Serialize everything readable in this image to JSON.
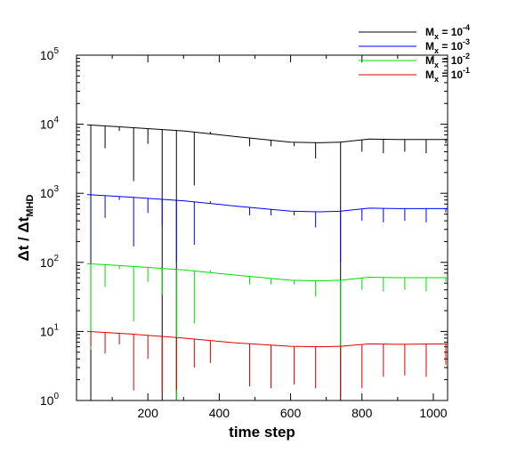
{
  "chart_data": {
    "type": "line",
    "xlabel": "time step",
    "ylabel": {
      "main": "Δt / Δt",
      "sub": "MHD"
    },
    "xlim": [
      0,
      1040
    ],
    "ylim": [
      1,
      100000
    ],
    "yscale": "log",
    "x_ticks": [
      200,
      400,
      600,
      800,
      1000
    ],
    "y_ticks": [
      {
        "value": 1,
        "base": "10",
        "exp": "0"
      },
      {
        "value": 10,
        "base": "10",
        "exp": "1"
      },
      {
        "value": 100,
        "base": "10",
        "exp": "2"
      },
      {
        "value": 1000,
        "base": "10",
        "exp": "3"
      },
      {
        "value": 10000,
        "base": "10",
        "exp": "4"
      },
      {
        "value": 100000,
        "base": "10",
        "exp": "5"
      }
    ],
    "legend_position": "top-right",
    "spike_steps": [
      40,
      80,
      120,
      160,
      200,
      240,
      280,
      330,
      375,
      485,
      545,
      610,
      670,
      740,
      800,
      860,
      920,
      980,
      1035
    ],
    "series": [
      {
        "name": {
          "base": "M",
          "sub": "x",
          "rest": " = 10",
          "exp": "-4"
        },
        "color": "#000000",
        "baseline": [
          [
            30,
            9800
          ],
          [
            150,
            9000
          ],
          [
            300,
            8000
          ],
          [
            450,
            6600
          ],
          [
            600,
            5500
          ],
          [
            680,
            5400
          ],
          [
            740,
            5500
          ],
          [
            820,
            6100
          ],
          [
            900,
            6000
          ],
          [
            1040,
            6000
          ]
        ],
        "spike_mins": [
          1,
          4500,
          8000,
          1500,
          5200,
          1,
          1,
          1300,
          7800,
          4800,
          4800,
          4800,
          3200,
          1,
          4000,
          3800,
          4000,
          3800,
          5300
        ]
      },
      {
        "name": {
          "base": "M",
          "sub": "x",
          "rest": " = 10",
          "exp": "-3"
        },
        "color": "#0000ff",
        "baseline": [
          [
            30,
            960
          ],
          [
            150,
            880
          ],
          [
            300,
            780
          ],
          [
            450,
            650
          ],
          [
            600,
            550
          ],
          [
            680,
            540
          ],
          [
            740,
            550
          ],
          [
            820,
            610
          ],
          [
            900,
            600
          ],
          [
            1040,
            600
          ]
        ],
        "spike_mins": [
          100,
          440,
          800,
          170,
          520,
          340,
          100,
          180,
          770,
          480,
          480,
          480,
          320,
          100,
          400,
          380,
          400,
          380,
          530
        ]
      },
      {
        "name": {
          "base": "M",
          "sub": "x",
          "rest": " = 10",
          "exp": "-2"
        },
        "color": "#00dd00",
        "baseline": [
          [
            30,
            96
          ],
          [
            150,
            88
          ],
          [
            300,
            78
          ],
          [
            450,
            65
          ],
          [
            600,
            55
          ],
          [
            680,
            54
          ],
          [
            740,
            55
          ],
          [
            820,
            61
          ],
          [
            900,
            60
          ],
          [
            1040,
            60
          ]
        ],
        "spike_mins": [
          5.5,
          44,
          80,
          14,
          52,
          34,
          1,
          13,
          77,
          48,
          48,
          48,
          32,
          4.5,
          40,
          38,
          40,
          38,
          53
        ]
      },
      {
        "name": {
          "base": "M",
          "sub": "x",
          "rest": " = 10",
          "exp": "-1"
        },
        "color": "#dd0000",
        "baseline": [
          [
            30,
            10
          ],
          [
            150,
            9.2
          ],
          [
            300,
            8.0
          ],
          [
            450,
            6.8
          ],
          [
            600,
            6.1
          ],
          [
            680,
            6.0
          ],
          [
            740,
            6.1
          ],
          [
            820,
            6.6
          ],
          [
            900,
            6.5
          ],
          [
            1040,
            6.6
          ]
        ],
        "spike_mins": [
          6,
          4.8,
          6.5,
          1.4,
          4,
          1.3,
          1.4,
          3,
          3.5,
          1.6,
          1.5,
          1.7,
          1.5,
          1.1,
          1.5,
          2.2,
          2.3,
          2.2,
          3.3
        ]
      }
    ]
  }
}
